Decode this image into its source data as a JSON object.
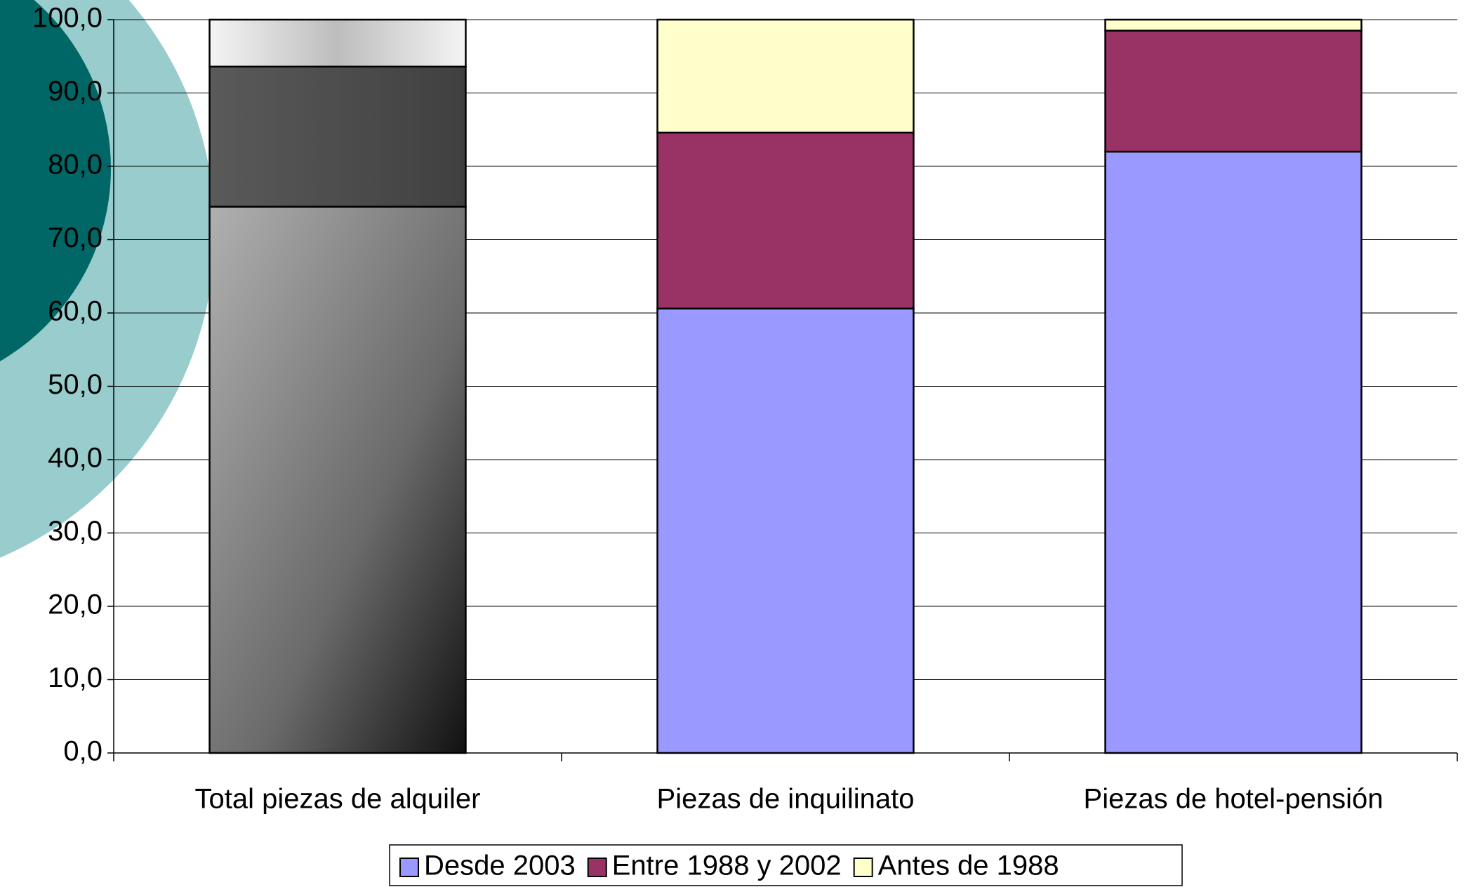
{
  "chart_data": {
    "type": "stacked-bar",
    "categories": [
      "Total piezas de alquiler",
      "Piezas de inquilinato",
      "Piezas de hotel-pensión"
    ],
    "series": [
      {
        "name": "Desde 2003",
        "color": "#9999ff",
        "values": [
          74.5,
          60.6,
          82.0
        ]
      },
      {
        "name": "Entre 1988 y 2002",
        "color": "#993366",
        "values": [
          19.1,
          24.0,
          16.5
        ]
      },
      {
        "name": "Antes de 1988",
        "color": "#ffffcc",
        "values": [
          6.4,
          15.4,
          1.5
        ]
      }
    ],
    "ylim": [
      0,
      100
    ],
    "yticks": [
      {
        "value": 0,
        "label": "0,0"
      },
      {
        "value": 10,
        "label": "10,0"
      },
      {
        "value": 20,
        "label": "20,0"
      },
      {
        "value": 30,
        "label": "30,0"
      },
      {
        "value": 40,
        "label": "40,0"
      },
      {
        "value": 50,
        "label": "50,0"
      },
      {
        "value": 60,
        "label": "60,0"
      },
      {
        "value": 70,
        "label": "70,0"
      },
      {
        "value": 80,
        "label": "80,0"
      },
      {
        "value": 90,
        "label": "90,0"
      },
      {
        "value": 100,
        "label": "100,0"
      }
    ],
    "grid": true,
    "legend": "bottom"
  }
}
